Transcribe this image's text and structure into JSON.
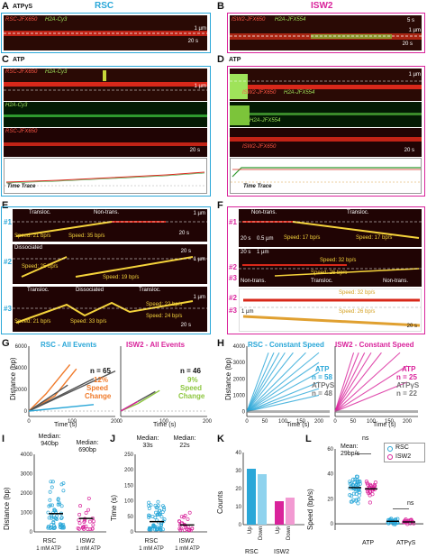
{
  "panels": {
    "A": {
      "letter": "A",
      "cond": "ATPγS",
      "title": "RSC",
      "l1": "RSC-JFX650",
      "l2": "H2A-Cy3",
      "sbar_t": "20 s",
      "sbar_d": "1 µm"
    },
    "B": {
      "letter": "B",
      "title": "ISW2",
      "l1": "ISW2-JFX650",
      "l2": "H2A-JFX554",
      "sbar_t1": "5 s",
      "sbar_d": "1 µm",
      "sbar_t2": "20 s"
    },
    "C": {
      "letter": "C",
      "cond": "ATP",
      "l1": "RSC-JFX650",
      "l2": "H2A-Cy3",
      "g": "H2A-Cy3",
      "r": "RSC-JFX650",
      "sbar_d": "1 µm",
      "sbar_t": "20 s",
      "tt": "Time Trace"
    },
    "D": {
      "letter": "D",
      "cond": "ATP",
      "l1": "ISW2-JFX650",
      "l2": "H2A-JFX554",
      "g": "H2A-JFX554",
      "r": "ISW2-JFX650",
      "sbar_d": "1 µm",
      "sbar_t": "20 s",
      "tt": "Time Trace"
    },
    "E": {
      "letter": "E",
      "r1": {
        "num": "#1",
        "seg1": "Transloc.",
        "seg2": "Non-trans.",
        "sp1": "Speed: 21 bp/s",
        "sp2": "Speed: 35 bp/s",
        "sbar_d": "1 µm",
        "sbar_t": "20 s"
      },
      "r2": {
        "num": "#2",
        "seg1": "Dissociated",
        "sp1": "Speed: 25 bp/s",
        "sp2": "Speed: 19 bp/s",
        "sbar_t": "20 s",
        "sbar_d": "1 µm"
      },
      "r3": {
        "num": "#3",
        "seg1": "Transloc.",
        "seg2": "Dissociated",
        "seg3": "Transloc.",
        "sp1": "Speed: 21 bp/s",
        "sp2": "Speed: 33 bp/s",
        "sp3": "Speed: 22 bp/s",
        "sp4": "Speed: 24 bp/s",
        "sbar_d": "1 µm",
        "sbar_t": "20 s"
      }
    },
    "F": {
      "letter": "F",
      "r1": {
        "num": "#1",
        "seg1": "Non-trans.",
        "seg2": "Transloc.",
        "sp1": "Speed: 17 bp/s",
        "sp2": "Speed: 17 bp/s",
        "sbar_t": "20 s",
        "sbar_d": "0.5 µm"
      },
      "r2": {
        "num1": "#2",
        "num2": "#3",
        "sp1": "Speed: 32 bp/s",
        "sp2": "Speed: 26 bp/s",
        "seg1": "Non-trans.",
        "seg2": "Transloc.",
        "seg3": "Non-trans.",
        "sbar_t": "20 s",
        "sbar_d": "1 µm"
      },
      "r3": {
        "num1": "#2",
        "num2": "#3",
        "sp1": "Speed: 32 bp/s",
        "sp2": "Speed: 26 bp/s",
        "sbar_d": "1 µm",
        "sbar_t": "20 s"
      }
    },
    "G": {
      "letter": "G",
      "t1": "RSC - All Events",
      "t2": "ISW2 - All Events",
      "n1": "n = 65",
      "n2": "n = 46",
      "pc1": "12%",
      "pc2": "9%",
      "sc1": "Speed",
      "sc2": "Change",
      "ylab": "Distance (bp)",
      "xlab1": "Time (s)",
      "xlab2": "Time (s)"
    },
    "H": {
      "letter": "H",
      "t1": "RSC - Constant Speed",
      "t2": "ISW2 - Constant Speed",
      "atp": "ATP",
      "atps": "ATPγS",
      "n1": "n = 58",
      "n2": "n = 48",
      "n3": "n = 25",
      "n4": "n = 22",
      "ylab": "Distance (bp)",
      "xlab1": "Time (s)",
      "xlab2": "Time (s)"
    },
    "I": {
      "letter": "I",
      "m1": "Median:",
      "v1": "940bp",
      "m2": "Median:",
      "v2": "690bp",
      "ylab": "Distance (bp)",
      "c1": "RSC",
      "c2": "ISW2",
      "u1": "1 mM ATP",
      "u2": "1 mM ATP"
    },
    "J": {
      "letter": "J",
      "m1": "Median:",
      "v1": "33s",
      "m2": "Median:",
      "v2": "22s",
      "ylab": "Time (s)",
      "c1": "RSC",
      "c2": "ISW2",
      "u1": "1 mM ATP",
      "u2": "1 mM ATP"
    },
    "K": {
      "letter": "K",
      "ylab": "Counts",
      "x1": "Up",
      "x2": "Down",
      "x3": "Up",
      "x4": "Down",
      "g1": "RSC",
      "g2": "ISW2"
    },
    "L": {
      "letter": "L",
      "ylab": "Speed (bp/s)",
      "mean": "Mean:",
      "meanv": "29bp/s",
      "ns1": "ns",
      "ns2": "ns",
      "leg1": "RSC",
      "leg2": "ISW2",
      "x1": "ATP",
      "x2": "ATPγS"
    }
  },
  "colors": {
    "rsc": "#2aa7d8",
    "isw2": "#d9239b",
    "orange": "#f07a2a",
    "green": "#8dc63f"
  },
  "chart_data": [
    {
      "type": "line",
      "id": "G-rsc",
      "title": "RSC - All Events",
      "xlabel": "Time (s)",
      "ylabel": "Distance (bp)",
      "xlim": [
        0,
        200
      ],
      "ylim": [
        -500,
        6000
      ],
      "xticks": [
        0,
        100,
        200
      ],
      "yticks": [
        0,
        2000,
        4000,
        6000
      ],
      "series": [
        {
          "name": "Speed Change",
          "color": "#f07a2a",
          "points": [
            [
              0,
              0
            ],
            [
              60,
              1400
            ],
            [
              110,
              3900
            ]
          ]
        },
        {
          "name": "Speed Change",
          "color": "#f07a2a",
          "points": [
            [
              0,
              0
            ],
            [
              40,
              1600
            ],
            [
              95,
              4300
            ]
          ]
        },
        {
          "color": "#555555",
          "points": [
            [
              0,
              0
            ],
            [
              150,
              3000
            ]
          ]
        },
        {
          "color": "#555555",
          "points": [
            [
              0,
              0
            ],
            [
              90,
              2400
            ]
          ]
        },
        {
          "color": "#555555",
          "points": [
            [
              0,
              0
            ],
            [
              200,
              3700
            ]
          ]
        },
        {
          "color": "#2aa7d8",
          "points": [
            [
              0,
              0
            ],
            [
              150,
              600
            ]
          ]
        }
      ],
      "annotations": [
        "n = 65",
        "12%",
        "Speed",
        "Change"
      ]
    },
    {
      "type": "line",
      "id": "G-isw2",
      "title": "ISW2 - All Events",
      "xlabel": "Time (s)",
      "xlim": [
        0,
        200
      ],
      "ylim": [
        -500,
        6000
      ],
      "xticks": [
        0,
        100,
        200
      ],
      "series": [
        {
          "name": "Speed Change",
          "color": "#8dc63f",
          "points": [
            [
              0,
              0
            ],
            [
              40,
              700
            ],
            [
              90,
              1900
            ]
          ]
        },
        {
          "color": "#555555",
          "points": [
            [
              0,
              0
            ],
            [
              80,
              1800
            ]
          ]
        },
        {
          "color": "#d9239b",
          "points": [
            [
              0,
              0
            ],
            [
              40,
              900
            ]
          ]
        }
      ],
      "annotations": [
        "n = 46",
        "9%",
        "Speed",
        "Change"
      ]
    },
    {
      "type": "line",
      "id": "H-rsc",
      "title": "RSC - Constant Speed",
      "xlabel": "Time (s)",
      "ylabel": "Distance (bp)",
      "xlim": [
        0,
        230
      ],
      "ylim": [
        -300,
        4000
      ],
      "xticks": [
        0,
        50,
        100,
        150,
        200
      ],
      "yticks": [
        0,
        1000,
        2000,
        3000,
        4000
      ],
      "series": [
        {
          "name": "ATP",
          "color": "#2aa7d8",
          "n": 58
        },
        {
          "name": "ATPγS",
          "color": "#777777",
          "n": 48
        }
      ]
    },
    {
      "type": "line",
      "id": "H-isw2",
      "title": "ISW2 - Constant Speed",
      "xlabel": "Time (s)",
      "xlim": [
        0,
        230
      ],
      "ylim": [
        -300,
        4000
      ],
      "xticks": [
        0,
        50,
        100,
        150,
        200
      ],
      "series": [
        {
          "name": "ATP",
          "color": "#d9239b",
          "n": 25
        },
        {
          "name": "ATPγS",
          "color": "#777777",
          "n": 22
        }
      ]
    },
    {
      "type": "scatter",
      "id": "I",
      "ylabel": "Distance (bp)",
      "ylim": [
        0,
        4000
      ],
      "yticks": [
        0,
        1000,
        2000,
        3000,
        4000
      ],
      "categories": [
        "RSC 1 mM ATP",
        "ISW2 1 mM ATP"
      ],
      "medians": [
        940,
        690
      ]
    },
    {
      "type": "scatter",
      "id": "J",
      "ylabel": "Time (s)",
      "ylim": [
        0,
        250
      ],
      "yticks": [
        0,
        50,
        100,
        150,
        200,
        250
      ],
      "categories": [
        "RSC 1 mM ATP",
        "ISW2 1 mM ATP"
      ],
      "medians": [
        33,
        22
      ]
    },
    {
      "type": "bar",
      "id": "K",
      "ylabel": "Counts",
      "ylim": [
        0,
        40
      ],
      "yticks": [
        0,
        10,
        20,
        30,
        40
      ],
      "categories": [
        "RSC Up",
        "RSC Down",
        "ISW2 Up",
        "ISW2 Down"
      ],
      "values": [
        31,
        28,
        13,
        15
      ]
    },
    {
      "type": "scatter",
      "id": "L",
      "ylabel": "Speed (bp/s)",
      "ylim": [
        -5,
        60
      ],
      "yticks": [
        0,
        20,
        40,
        60
      ],
      "categories": [
        "ATP",
        "ATPγS"
      ],
      "series": [
        {
          "name": "RSC",
          "color": "#2aa7d8"
        },
        {
          "name": "ISW2",
          "color": "#d9239b"
        }
      ],
      "annotations": [
        "Mean:",
        "29bp/s",
        "ns",
        "ns"
      ]
    }
  ]
}
